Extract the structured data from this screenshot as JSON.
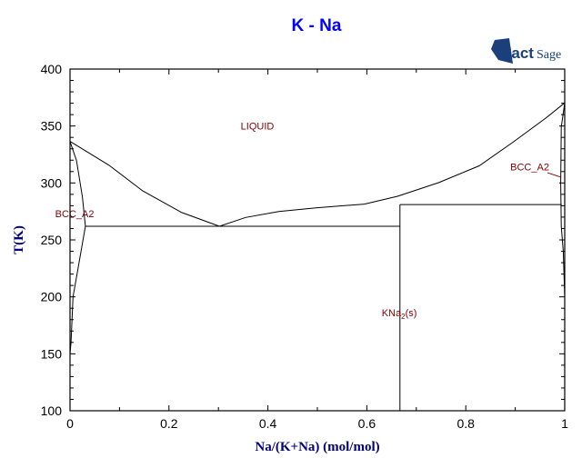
{
  "brand": "FactSage",
  "chart_data": {
    "type": "line",
    "title": "K - Na",
    "xlabel": "Na/(K+Na) (mol/mol)",
    "ylabel": "T(K)",
    "xlim": [
      0,
      1
    ],
    "ylim": [
      100,
      400
    ],
    "xticks": [
      "0",
      "0.2",
      "0.4",
      "0.6",
      "0.8",
      "1"
    ],
    "yticks": [
      "100",
      "150",
      "200",
      "250",
      "300",
      "350",
      "400"
    ],
    "grid": false,
    "colors": {
      "title": "#0000ff",
      "axis_label": "#000080",
      "phase_label": "#800000",
      "lines": "#000000"
    },
    "phase_labels": [
      {
        "text": "LIQUID",
        "x": 0.345,
        "y": 347
      },
      {
        "text": "BCC_A2",
        "x": -0.03,
        "y": 270
      },
      {
        "text": "BCC_A2",
        "x": 0.89,
        "y": 311
      },
      {
        "text": "KNa",
        "sub": "2",
        "suffix": "(s)",
        "x": 0.63,
        "y": 183
      }
    ],
    "series": [
      {
        "x": [
          0,
          0.079,
          0.147,
          0.226,
          0.302
        ],
        "y": [
          336.5,
          315.5,
          293,
          274,
          262
        ]
      },
      {
        "x": [
          0.302,
          0.355,
          0.422,
          0.497,
          0.595,
          0.662,
          0.745,
          0.827,
          0.895,
          0.962,
          1.0
        ],
        "y": [
          262,
          269.7,
          275,
          278.2,
          281.4,
          288.3,
          300.3,
          315,
          335.7,
          357,
          370.3
        ]
      },
      {
        "x": [
          0,
          0.013,
          0.025,
          0.031,
          0.017,
          0.006,
          0.002,
          0.0
        ],
        "y": [
          336.5,
          319.7,
          287.8,
          262,
          226.7,
          200,
          160,
          150
        ]
      },
      {
        "x": [
          1.0,
          0.993,
          0.992,
          0.993,
          0.997,
          1.0
        ],
        "y": [
          370.3,
          349,
          300,
          262,
          240,
          200
        ]
      },
      {
        "x": [
          0.031,
          0.667
        ],
        "y": [
          262,
          262
        ]
      },
      {
        "x": [
          0.667,
          0.994
        ],
        "y": [
          281,
          281
        ]
      },
      {
        "x": [
          0.667,
          0.667
        ],
        "y": [
          100,
          281
        ]
      }
    ]
  }
}
